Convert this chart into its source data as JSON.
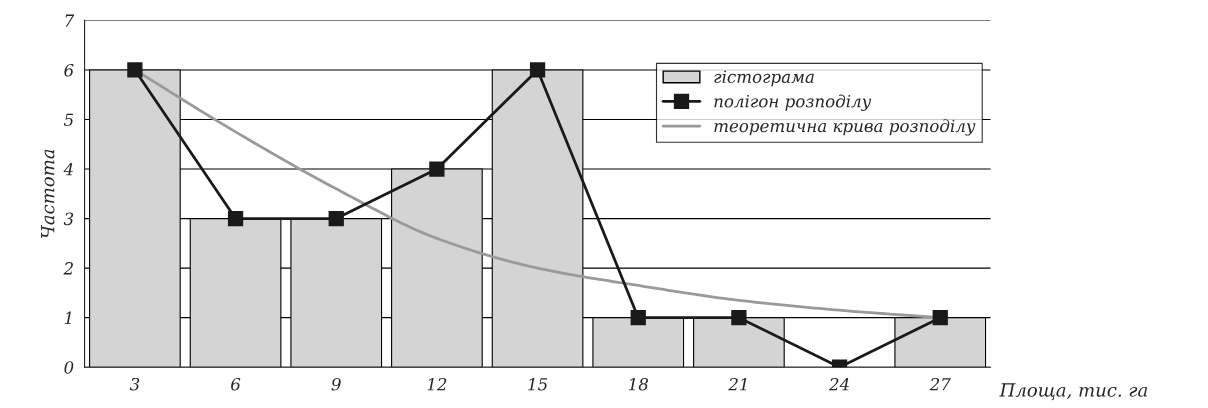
{
  "chart_data": {
    "type": "bar",
    "xlabel": "Площа, тис. га",
    "ylabel": "Частота",
    "categories": [
      "3",
      "6",
      "9",
      "12",
      "15",
      "18",
      "21",
      "24",
      "27"
    ],
    "series": [
      {
        "name": "гістограма",
        "color": "#d4d4d4",
        "values": [
          6,
          3,
          3,
          4,
          6,
          1,
          1,
          0,
          1
        ]
      },
      {
        "name": "полігон розподілу",
        "type": "line",
        "color": "#1a1a1a",
        "marker": "square",
        "line_style": "solid",
        "values": [
          6,
          3,
          3,
          4,
          6,
          1,
          1,
          0,
          1
        ]
      },
      {
        "name": "теоретична крива розподілу",
        "type": "line",
        "color": "#9a9a9a",
        "marker": "none",
        "line_style": "solid",
        "values": [
          6,
          4.75,
          3.6,
          2.6,
          2.0,
          1.65,
          1.35,
          1.15,
          1.0
        ]
      }
    ],
    "ylim": [
      0,
      7
    ],
    "yticks": [
      0,
      1,
      2,
      3,
      4,
      5,
      6,
      7
    ],
    "grid": "y",
    "legend": "top right"
  }
}
